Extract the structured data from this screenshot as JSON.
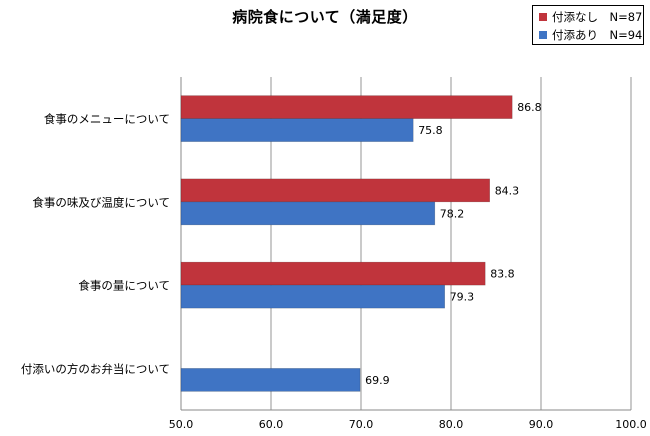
{
  "chart_data": {
    "type": "bar",
    "orientation": "horizontal",
    "title": "病院食について（満足度）",
    "categories": [
      "食事のメニューについて",
      "食事の味及び温度について",
      "食事の量について",
      "付添いの方のお弁当について"
    ],
    "series": [
      {
        "name": "付添なし　N=87",
        "color": "#c0343c",
        "values": [
          86.8,
          84.3,
          83.8,
          null
        ]
      },
      {
        "name": "付添あり　N=94",
        "color": "#3f74c4",
        "values": [
          75.8,
          78.2,
          79.3,
          69.9
        ]
      }
    ],
    "xlim": [
      50.0,
      100.0
    ],
    "xticks": [
      "50.0",
      "60.0",
      "70.0",
      "80.0",
      "90.0",
      "100.0"
    ],
    "grid": true,
    "legend_position": "top-right",
    "xlabel": "",
    "ylabel": ""
  }
}
